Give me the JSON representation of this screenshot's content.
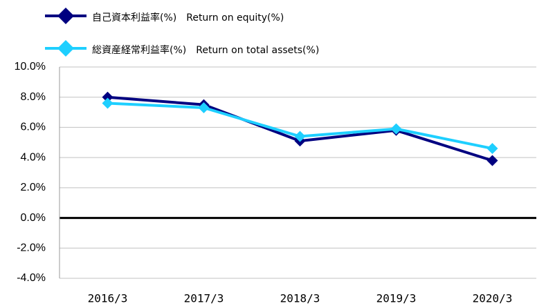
{
  "chart_data": {
    "type": "line",
    "categories": [
      "2016/3",
      "2017/3",
      "2018/3",
      "2019/3",
      "2020/3"
    ],
    "series": [
      {
        "name": "自己資本利益率(%)　Return on equity(%)",
        "color": "#000080",
        "values": [
          8.0,
          7.5,
          5.1,
          5.8,
          3.8
        ]
      },
      {
        "name": "総資産経常利益率(%)　Return on total assets(%)",
        "color": "#1ecfff",
        "values": [
          7.6,
          7.3,
          5.4,
          5.9,
          4.6
        ]
      }
    ],
    "ylim": [
      -4,
      10
    ],
    "yticks": [
      {
        "value": -4,
        "label": "-4.0%"
      },
      {
        "value": -2,
        "label": "-2.0%"
      },
      {
        "value": 0,
        "label": "0.0%"
      },
      {
        "value": 2,
        "label": "2.0%"
      },
      {
        "value": 4,
        "label": "4.0%"
      },
      {
        "value": 6,
        "label": "6.0%"
      },
      {
        "value": 8,
        "label": "8.0%"
      },
      {
        "value": 10,
        "label": "10.0%"
      }
    ],
    "grid": true,
    "legend": "top-left"
  }
}
